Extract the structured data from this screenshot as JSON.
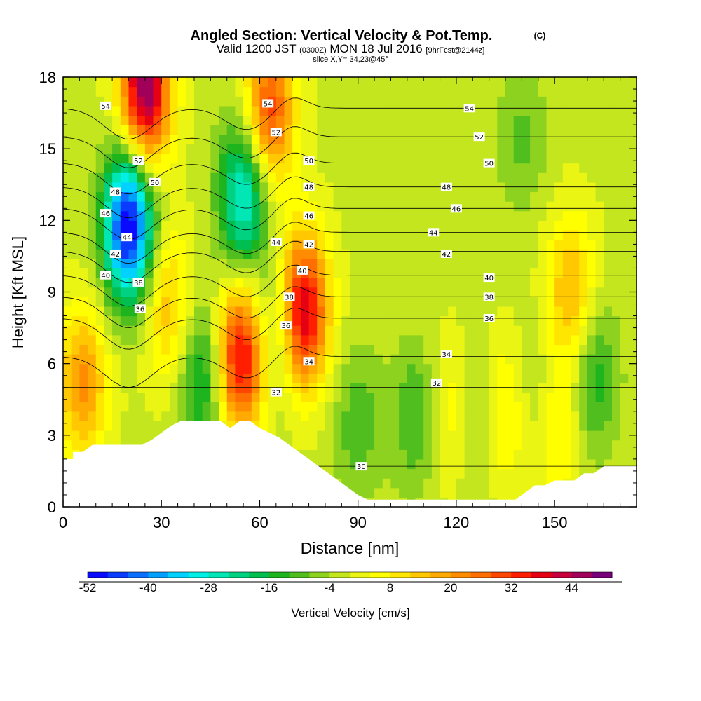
{
  "header": {
    "title_main": "Angled Section: Vertical Velocity & Pot.Temp.",
    "title_mark": "(C)",
    "valid_prefix": "Valid 1200 JST",
    "valid_zulu": "(0300Z)",
    "valid_date": "MON 18 Jul 2016",
    "valid_fcst": "[9hrFcst@2144z]",
    "slice": "slice X,Y= 34,23@45°"
  },
  "chart_data": {
    "type": "heatmap",
    "title": "Angled Section: Vertical Velocity & Pot.Temp.",
    "xlabel": "Distance [nm]",
    "ylabel": "Height [Kft MSL]",
    "xlim": [
      0,
      175
    ],
    "ylim": [
      0,
      18
    ],
    "x_ticks": [
      0,
      30,
      60,
      90,
      120,
      150
    ],
    "y_ticks": [
      0,
      3,
      6,
      9,
      12,
      15,
      18
    ],
    "fill_variable": "Vertical Velocity [cm/s]",
    "contour_variable": "Pot.Temp.",
    "colorbar": {
      "label": "Vertical Velocity [cm/s]",
      "tick_labels": [
        -52,
        -40,
        -28,
        -16,
        -4,
        8,
        20,
        32,
        44
      ],
      "levels": [
        -52,
        -48,
        -44,
        -40,
        -36,
        -32,
        -28,
        -24,
        -20,
        -16,
        -12,
        -8,
        -4,
        0,
        4,
        8,
        12,
        16,
        20,
        24,
        28,
        32,
        36,
        40,
        44,
        48,
        52
      ],
      "colors": [
        "#0a0aff",
        "#0a3cff",
        "#0a6eff",
        "#00a0ff",
        "#00d2ff",
        "#00f0e6",
        "#00e6b4",
        "#00d282",
        "#00be50",
        "#1eb41e",
        "#50be1e",
        "#8cd21e",
        "#c3e61e",
        "#ebf514",
        "#ffff00",
        "#ffe600",
        "#ffc800",
        "#ffaa00",
        "#ff8c00",
        "#ff6e00",
        "#ff4600",
        "#ff1e00",
        "#e60014",
        "#c8003c",
        "#a0005a",
        "#780078"
      ]
    },
    "velocity_features": [
      {
        "x": 20,
        "y": 11.8,
        "value": -52
      },
      {
        "x": 55,
        "y": 13.0,
        "value": -30
      },
      {
        "x": 67,
        "y": 7.6,
        "value": -16
      },
      {
        "x": 43,
        "y": 5.5,
        "value": -18
      },
      {
        "x": 25,
        "y": 17.5,
        "value": 50
      },
      {
        "x": 63,
        "y": 16.6,
        "value": 32
      },
      {
        "x": 73,
        "y": 8.2,
        "value": 48
      },
      {
        "x": 54,
        "y": 6.2,
        "value": 40
      },
      {
        "x": 6,
        "y": 5.2,
        "value": 22
      },
      {
        "x": 32,
        "y": 8.5,
        "value": 16
      },
      {
        "x": 90,
        "y": 3.5,
        "value": -10
      },
      {
        "x": 108,
        "y": 3.8,
        "value": -12
      },
      {
        "x": 126,
        "y": 3.8,
        "value": -8
      },
      {
        "x": 145,
        "y": 4.5,
        "value": -10
      },
      {
        "x": 162,
        "y": 5.5,
        "value": -14
      },
      {
        "x": 140,
        "y": 15.5,
        "value": -8
      },
      {
        "x": 118,
        "y": 4.0,
        "value": 10
      },
      {
        "x": 135,
        "y": 4.0,
        "value": 12
      },
      {
        "x": 150,
        "y": 3.5,
        "value": 14
      },
      {
        "x": 155,
        "y": 9.0,
        "value": 18
      }
    ],
    "theta_contour_labels": [
      {
        "text": "54",
        "x": 13,
        "y": 16.8
      },
      {
        "text": "52",
        "x": 23,
        "y": 14.5
      },
      {
        "text": "50",
        "x": 28,
        "y": 13.6
      },
      {
        "text": "48",
        "x": 16,
        "y": 13.2
      },
      {
        "text": "46",
        "x": 13,
        "y": 12.3
      },
      {
        "text": "44",
        "x": 19.5,
        "y": 11.3
      },
      {
        "text": "42",
        "x": 16,
        "y": 10.6
      },
      {
        "text": "40",
        "x": 13,
        "y": 9.7
      },
      {
        "text": "38",
        "x": 23,
        "y": 9.4
      },
      {
        "text": "36",
        "x": 23.5,
        "y": 8.3
      },
      {
        "text": "54",
        "x": 62.5,
        "y": 16.9
      },
      {
        "text": "52",
        "x": 65,
        "y": 15.7
      },
      {
        "text": "50",
        "x": 75,
        "y": 14.5
      },
      {
        "text": "48",
        "x": 75,
        "y": 13.4
      },
      {
        "text": "46",
        "x": 75,
        "y": 12.2
      },
      {
        "text": "44",
        "x": 65,
        "y": 11.1
      },
      {
        "text": "42",
        "x": 75,
        "y": 11.0
      },
      {
        "text": "40",
        "x": 73,
        "y": 9.9
      },
      {
        "text": "38",
        "x": 69,
        "y": 8.8
      },
      {
        "text": "36",
        "x": 68,
        "y": 7.6
      },
      {
        "text": "34",
        "x": 75,
        "y": 6.1
      },
      {
        "text": "32",
        "x": 65,
        "y": 4.8
      },
      {
        "text": "30",
        "x": 91,
        "y": 1.7
      },
      {
        "text": "54",
        "x": 124,
        "y": 16.7
      },
      {
        "text": "52",
        "x": 127,
        "y": 15.5
      },
      {
        "text": "50",
        "x": 130,
        "y": 14.4
      },
      {
        "text": "48",
        "x": 117,
        "y": 13.4
      },
      {
        "text": "46",
        "x": 120,
        "y": 12.5
      },
      {
        "text": "44",
        "x": 113,
        "y": 11.5
      },
      {
        "text": "42",
        "x": 117,
        "y": 10.6
      },
      {
        "text": "40",
        "x": 130,
        "y": 9.6
      },
      {
        "text": "38",
        "x": 130,
        "y": 8.8
      },
      {
        "text": "36",
        "x": 130,
        "y": 7.9
      },
      {
        "text": "34",
        "x": 117,
        "y": 6.4
      },
      {
        "text": "32",
        "x": 114,
        "y": 5.2
      }
    ],
    "terrain": {
      "x": [
        0,
        3,
        3,
        6,
        9,
        12,
        15,
        18,
        21,
        24,
        27,
        30,
        33,
        36,
        39,
        42,
        45,
        48,
        51,
        54,
        57,
        60,
        63,
        66,
        69,
        72,
        75,
        78,
        81,
        84,
        87,
        90,
        93,
        96,
        99,
        102,
        105,
        108,
        111,
        114,
        117,
        120,
        123,
        126,
        129,
        132,
        135,
        138,
        141,
        144,
        147,
        150,
        153,
        156,
        159,
        162,
        165,
        168,
        171,
        175
      ],
      "y": [
        2.0,
        2.0,
        2.3,
        2.3,
        2.6,
        2.6,
        2.6,
        2.6,
        2.6,
        2.6,
        2.8,
        3.1,
        3.4,
        3.6,
        3.6,
        3.6,
        3.6,
        3.6,
        3.3,
        3.6,
        3.6,
        3.3,
        3.1,
        2.9,
        2.6,
        2.3,
        2.0,
        1.7,
        1.4,
        1.1,
        0.8,
        0.5,
        0.3,
        0.3,
        0.3,
        0.3,
        0.3,
        0.3,
        0.3,
        0.3,
        0.3,
        0.3,
        0.3,
        0.3,
        0.3,
        0.3,
        0.3,
        0.3,
        0.6,
        0.9,
        0.9,
        1.1,
        1.1,
        1.1,
        1.4,
        1.4,
        1.7,
        1.7,
        1.7,
        1.7
      ]
    }
  }
}
